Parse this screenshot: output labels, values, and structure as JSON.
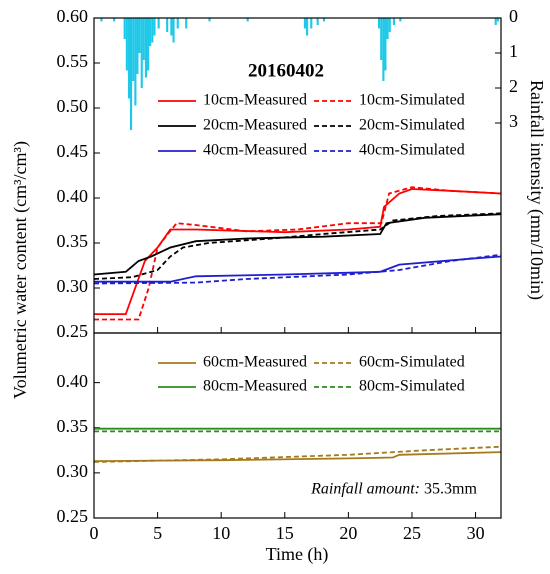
{
  "chart_data": [
    {
      "type": "line",
      "title": "20160402",
      "y_label": "Volumetric water content (cm³/cm³)",
      "y2_label": "Rainfall intensity (mm/10min)",
      "xlim": [
        0,
        32
      ],
      "ylim": [
        0.25,
        0.6
      ],
      "yticks": [
        0.25,
        {
          "value": 0.3,
          "label": "0.30"
        },
        0.35,
        {
          "value": 0.4,
          "label": "0.40"
        },
        0.45,
        {
          "value": 0.5,
          "label": "0.50"
        },
        0.55,
        {
          "value": 0.6,
          "label": "0.60"
        }
      ],
      "y2lim": [
        0,
        9
      ],
      "y2ticks": [
        0,
        1,
        2,
        3
      ],
      "series": [
        {
          "name": "10cm-Measured",
          "color": "#ff0000",
          "dash": false,
          "x": [
            0,
            2.5,
            4,
            5,
            6,
            8,
            15,
            20,
            22.5,
            22.8,
            24,
            25,
            28,
            32
          ],
          "values": [
            0.271,
            0.271,
            0.33,
            0.345,
            0.365,
            0.365,
            0.362,
            0.365,
            0.368,
            0.39,
            0.405,
            0.41,
            0.408,
            0.405
          ]
        },
        {
          "name": "10cm-Simulated",
          "color": "#ff0000",
          "dash": true,
          "x": [
            0,
            3.5,
            4.3,
            5,
            5.8,
            6.5,
            8,
            12,
            16,
            20,
            22.6,
            23.2,
            25,
            28,
            32
          ],
          "values": [
            0.265,
            0.265,
            0.3,
            0.345,
            0.36,
            0.372,
            0.37,
            0.363,
            0.365,
            0.372,
            0.372,
            0.405,
            0.412,
            0.408,
            0.405
          ]
        },
        {
          "name": "20cm-Measured",
          "color": "#000000",
          "dash": false,
          "x": [
            0,
            2.5,
            3.5,
            4.5,
            6,
            8,
            12,
            18,
            22.5,
            23,
            26,
            32
          ],
          "values": [
            0.315,
            0.318,
            0.33,
            0.335,
            0.345,
            0.352,
            0.355,
            0.357,
            0.36,
            0.372,
            0.378,
            0.382
          ]
        },
        {
          "name": "20cm-Simulated",
          "color": "#000000",
          "dash": true,
          "x": [
            0,
            3,
            5,
            6,
            7,
            9,
            14,
            18,
            22.5,
            23.5,
            27,
            32
          ],
          "values": [
            0.31,
            0.312,
            0.32,
            0.335,
            0.345,
            0.35,
            0.355,
            0.36,
            0.365,
            0.375,
            0.38,
            0.383
          ]
        },
        {
          "name": "40cm-Measured",
          "color": "#1f1fcf",
          "dash": false,
          "x": [
            0,
            6,
            8,
            15,
            22.5,
            24,
            30,
            32
          ],
          "values": [
            0.307,
            0.307,
            0.313,
            0.315,
            0.318,
            0.326,
            0.333,
            0.335
          ]
        },
        {
          "name": "40cm-Simulated",
          "color": "#1f1fcf",
          "dash": true,
          "x": [
            0,
            8,
            12,
            20,
            24,
            28,
            32
          ],
          "values": [
            0.305,
            0.306,
            0.31,
            0.315,
            0.32,
            0.33,
            0.337
          ]
        }
      ],
      "rainfall": {
        "type": "bar",
        "axis": "y2",
        "color": "#1ec8e8",
        "x": [
          0.5,
          1.5,
          2.33,
          2.5,
          2.67,
          2.83,
          3.0,
          3.17,
          3.33,
          3.5,
          3.67,
          3.83,
          4.0,
          4.17,
          4.33,
          4.5,
          4.67,
          5.0,
          5.67,
          6.0,
          6.17,
          6.5,
          7.17,
          9.0,
          12.0,
          16.5,
          16.67,
          17.0,
          17.5,
          18.0,
          22.33,
          22.5,
          22.67,
          22.83,
          23.0,
          23.17,
          23.5,
          24.0,
          31.5,
          31.67
        ],
        "values": [
          0.1,
          0.1,
          0.6,
          1.5,
          2.3,
          3.2,
          1.8,
          2.5,
          1.6,
          1.0,
          2.0,
          1.2,
          1.7,
          1.5,
          0.8,
          0.7,
          0.5,
          0.3,
          0.4,
          0.5,
          0.7,
          0.3,
          0.3,
          0.1,
          0.1,
          0.3,
          0.5,
          0.3,
          0.2,
          0.1,
          0.3,
          1.2,
          1.8,
          1.5,
          0.6,
          0.4,
          0.2,
          0.1,
          0.2,
          0.1
        ]
      }
    },
    {
      "type": "line",
      "x_label": "Time (h)",
      "annotation_label": "Rainfall amount:",
      "annotation_value": "35.3mm",
      "xlim": [
        0,
        32
      ],
      "xticks": [
        0,
        5,
        10,
        15,
        20,
        25,
        30
      ],
      "ylim": [
        0.25,
        0.455
      ],
      "yticks": [
        0.25,
        {
          "value": 0.3,
          "label": "0.30"
        },
        0.35,
        {
          "value": 0.4,
          "label": "0.40"
        }
      ],
      "series": [
        {
          "name": "60cm-Measured",
          "color": "#a57a1e",
          "dash": false,
          "x": [
            0,
            10,
            20,
            23.5,
            24,
            32
          ],
          "values": [
            0.313,
            0.314,
            0.316,
            0.317,
            0.32,
            0.323
          ]
        },
        {
          "name": "60cm-Simulated",
          "color": "#a57a1e",
          "dash": true,
          "x": [
            0,
            10,
            20,
            26,
            32
          ],
          "values": [
            0.312,
            0.315,
            0.32,
            0.325,
            0.329
          ]
        },
        {
          "name": "80cm-Measured",
          "color": "#2e8b20",
          "dash": false,
          "x": [
            0,
            32
          ],
          "values": [
            0.349,
            0.349
          ]
        },
        {
          "name": "80cm-Simulated",
          "color": "#2e8b20",
          "dash": true,
          "x": [
            0,
            32
          ],
          "values": [
            0.346,
            0.346
          ]
        }
      ]
    }
  ]
}
